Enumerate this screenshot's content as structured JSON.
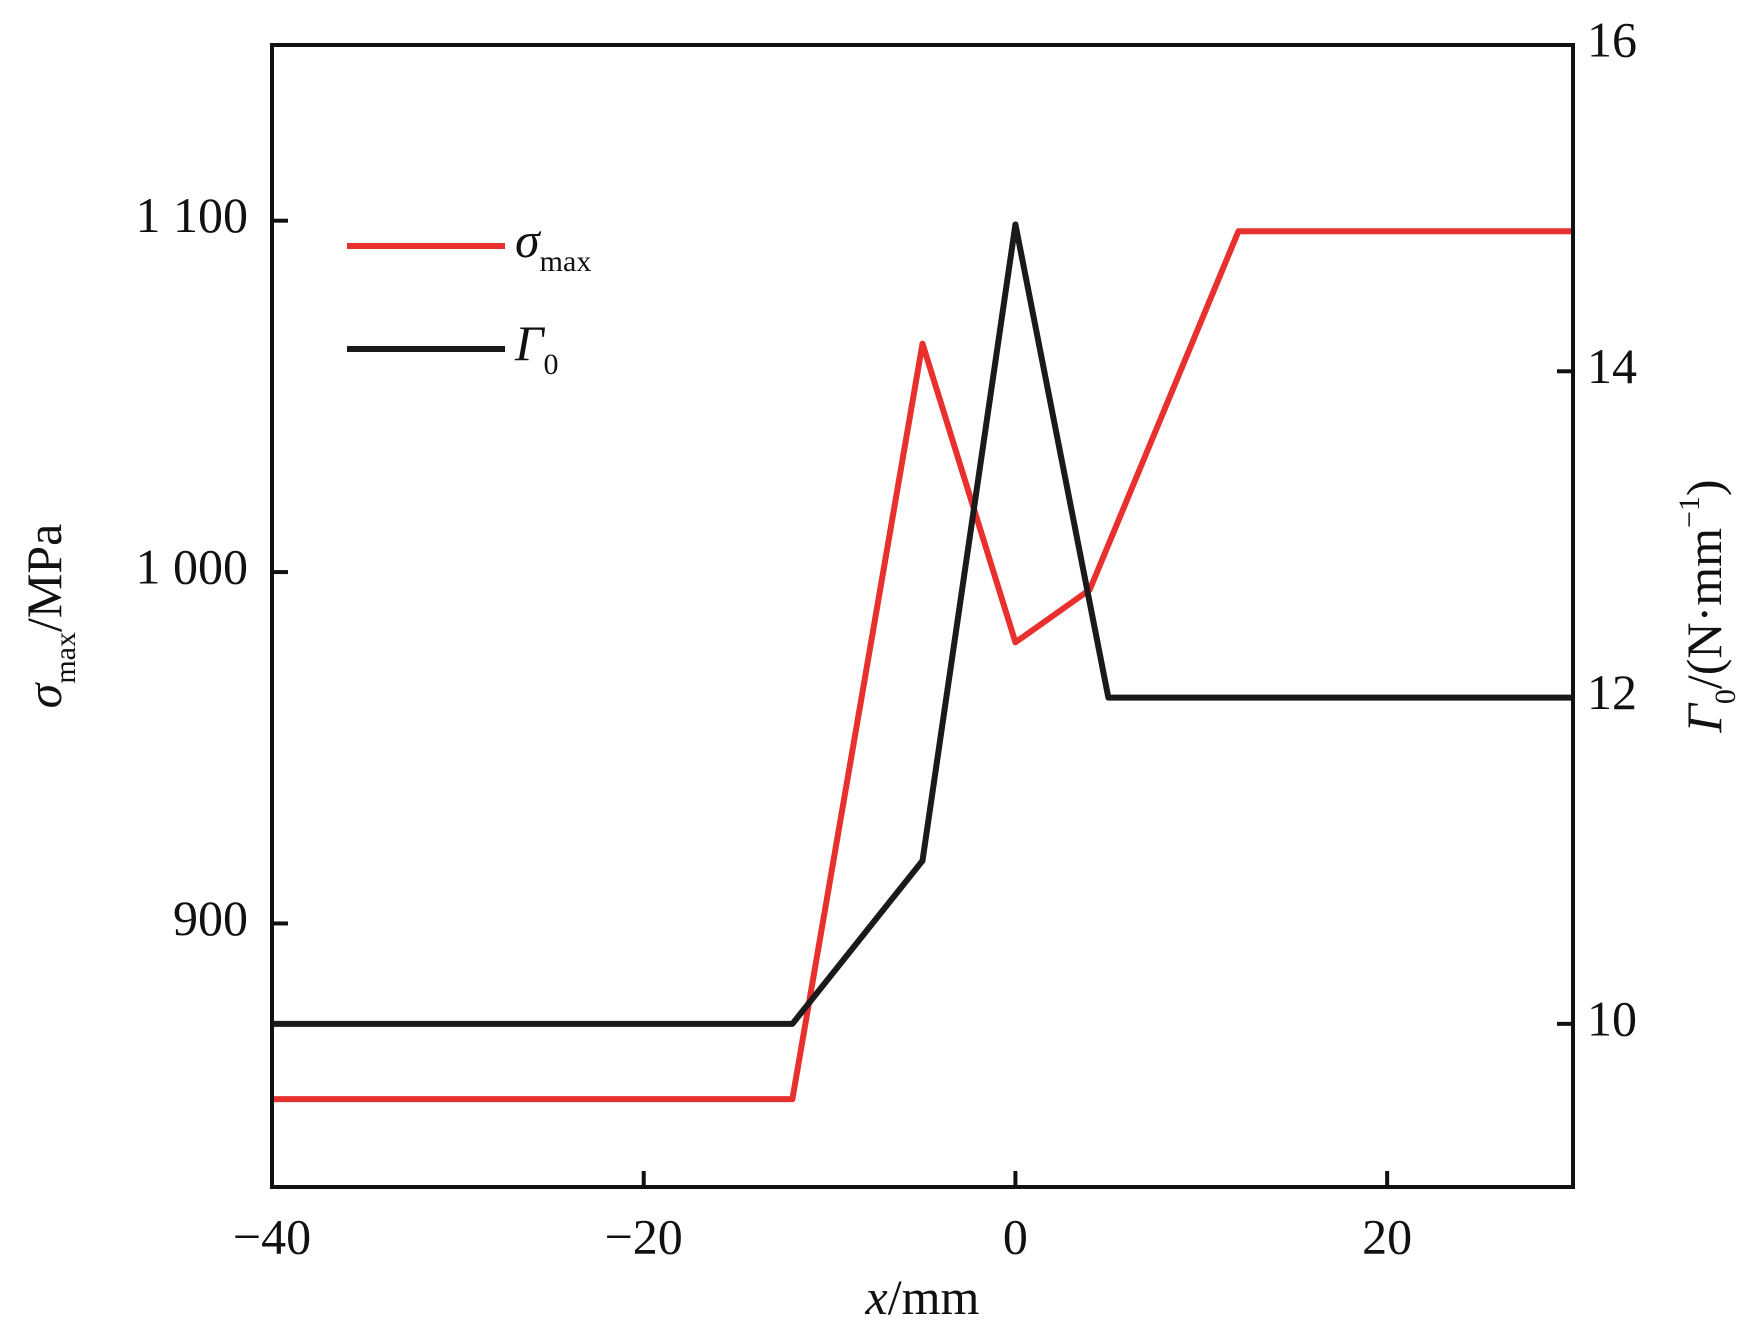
{
  "chart_data": {
    "type": "line",
    "xlabel": [
      "x",
      "/mm"
    ],
    "ylabel": [
      "σ",
      "max",
      "/MPa"
    ],
    "y2label": [
      "Γ",
      "0",
      "/(N·mm",
      "−1",
      ")"
    ],
    "xlim": [
      -40,
      30
    ],
    "xticks": [
      {
        "value": -40,
        "label": "−40"
      },
      {
        "value": -20,
        "label": "−20"
      },
      0,
      20
    ],
    "ylim": [
      825,
      1150
    ],
    "yticks": [
      {
        "value": 900,
        "label": "900"
      },
      {
        "value": 1000,
        "label": "1 000"
      },
      {
        "value": 1100,
        "label": "1 100"
      }
    ],
    "y2lim": [
      9,
      16
    ],
    "y2ticks": [
      10,
      12,
      14,
      16
    ],
    "series": [
      {
        "name": "σmax",
        "color": "#e8312f",
        "x": [
          -40,
          -12,
          -5,
          0,
          4,
          12,
          30
        ],
        "values": [
          850,
          850,
          1065,
          980,
          995,
          1097,
          1097
        ]
      },
      {
        "name": "Γ0",
        "color": "#1a1a1a",
        "axis": "y2",
        "x": [
          -40,
          -12,
          -5,
          0,
          5,
          30
        ],
        "values": [
          10,
          10,
          11,
          14.9,
          12,
          12
        ]
      }
    ]
  }
}
